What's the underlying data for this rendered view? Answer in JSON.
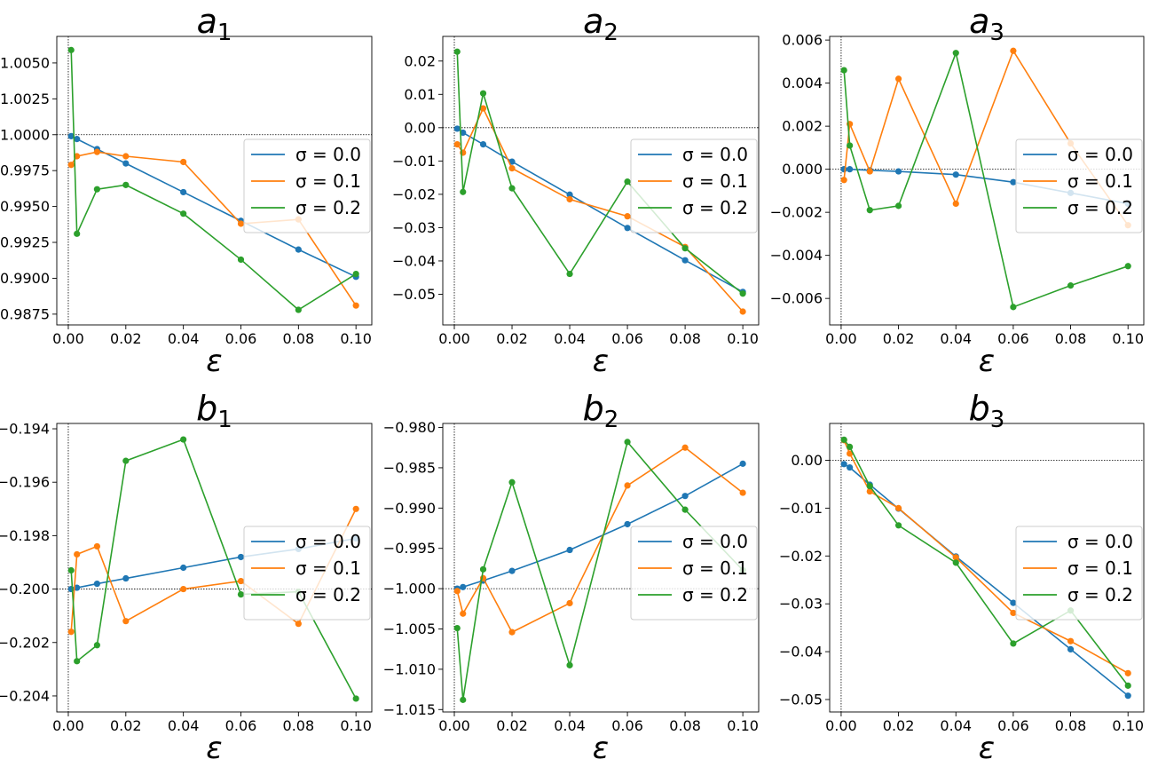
{
  "figure": {
    "background": "#ffffff"
  },
  "colors": {
    "sigma_0.0": "#1f77b4",
    "sigma_0.1": "#ff7f0e",
    "sigma_0.2": "#2ca02c"
  },
  "chart_data": [
    {
      "type": "line",
      "title": "a",
      "title_subscript": "1",
      "xlabel": "ε",
      "x": [
        0.001,
        0.003,
        0.01,
        0.02,
        0.04,
        0.06,
        0.08,
        0.1
      ],
      "xlim": [
        -0.004,
        0.1055
      ],
      "ylim": [
        0.98675,
        1.00685
      ],
      "xticks": [
        0.0,
        0.02,
        0.04,
        0.06,
        0.08,
        0.1
      ],
      "xtick_labels": [
        "0.00",
        "0.02",
        "0.04",
        "0.06",
        "0.08",
        "0.10"
      ],
      "yticks": [
        0.9875,
        0.99,
        0.9925,
        0.995,
        0.9975,
        1.0,
        1.0025,
        1.005
      ],
      "ytick_labels": [
        "0.9875",
        "0.9900",
        "0.9925",
        "0.9950",
        "0.9975",
        "1.0000",
        "1.0025",
        "1.0050"
      ],
      "reference_lines": {
        "y": 1.0,
        "x": 0.0
      },
      "legend": {
        "location": "center-right",
        "entries": [
          "σ = 0.0",
          "σ = 0.1",
          "σ = 0.2"
        ]
      },
      "series": [
        {
          "name": "σ = 0.0",
          "values": [
            0.9999,
            0.9997,
            0.999,
            0.998,
            0.996,
            0.994,
            0.992,
            0.9901
          ]
        },
        {
          "name": "σ = 0.1",
          "values": [
            0.9979,
            0.9985,
            0.9988,
            0.9985,
            0.9981,
            0.9938,
            0.9941,
            0.9881
          ]
        },
        {
          "name": "σ = 0.2",
          "values": [
            1.0059,
            0.9931,
            0.9962,
            0.9965,
            0.9945,
            0.9913,
            0.9878,
            0.9903
          ]
        }
      ]
    },
    {
      "type": "line",
      "title": "a",
      "title_subscript": "2",
      "xlabel": "ε",
      "x": [
        0.001,
        0.003,
        0.01,
        0.02,
        0.04,
        0.06,
        0.08,
        0.1
      ],
      "xlim": [
        -0.004,
        0.1055
      ],
      "ylim": [
        -0.0592,
        0.0274
      ],
      "xticks": [
        0.0,
        0.02,
        0.04,
        0.06,
        0.08,
        0.1
      ],
      "xtick_labels": [
        "0.00",
        "0.02",
        "0.04",
        "0.06",
        "0.08",
        "0.10"
      ],
      "yticks": [
        -0.05,
        -0.04,
        -0.03,
        -0.02,
        -0.01,
        0.0,
        0.01,
        0.02
      ],
      "ytick_labels": [
        "−0.05",
        "−0.04",
        "−0.03",
        "−0.02",
        "−0.01",
        "0.00",
        "0.01",
        "0.02"
      ],
      "reference_lines": {
        "y": 0.0,
        "x": 0.0
      },
      "legend": {
        "location": "center-right",
        "entries": [
          "σ = 0.0",
          "σ = 0.1",
          "σ = 0.2"
        ]
      },
      "series": [
        {
          "name": "σ = 0.0",
          "values": [
            -0.0003,
            -0.0015,
            -0.005,
            -0.0102,
            -0.0201,
            -0.0301,
            -0.0398,
            -0.0493
          ]
        },
        {
          "name": "σ = 0.1",
          "values": [
            -0.005,
            -0.0075,
            0.0058,
            -0.0122,
            -0.0215,
            -0.0266,
            -0.0358,
            -0.0552
          ]
        },
        {
          "name": "σ = 0.2",
          "values": [
            0.0228,
            -0.0193,
            0.0103,
            -0.0182,
            -0.0439,
            -0.0162,
            -0.0362,
            -0.0498
          ]
        }
      ]
    },
    {
      "type": "line",
      "title": "a",
      "title_subscript": "3",
      "xlabel": "ε",
      "x": [
        0.001,
        0.003,
        0.01,
        0.02,
        0.04,
        0.06,
        0.08,
        0.1
      ],
      "xlim": [
        -0.004,
        0.1055
      ],
      "ylim": [
        -0.00723,
        0.00617
      ],
      "xticks": [
        0.0,
        0.02,
        0.04,
        0.06,
        0.08,
        0.1
      ],
      "xtick_labels": [
        "0.00",
        "0.02",
        "0.04",
        "0.06",
        "0.08",
        "0.10"
      ],
      "yticks": [
        -0.006,
        -0.004,
        -0.002,
        0.0,
        0.002,
        0.004,
        0.006
      ],
      "ytick_labels": [
        "−0.006",
        "−0.004",
        "−0.002",
        "0.000",
        "0.002",
        "0.004",
        "0.006"
      ],
      "reference_lines": {
        "y": 0.0,
        "x": 0.0
      },
      "legend": {
        "location": "center-right",
        "entries": [
          "σ = 0.0",
          "σ = 0.1",
          "σ = 0.2"
        ]
      },
      "series": [
        {
          "name": "σ = 0.0",
          "values": [
            0.0,
            0.0,
            -5e-05,
            -0.0001,
            -0.00025,
            -0.0006,
            -0.0011,
            -0.0016
          ]
        },
        {
          "name": "σ = 0.1",
          "values": [
            -0.0005,
            0.0021,
            -0.0001,
            0.0042,
            -0.0016,
            0.0055,
            0.0012,
            -0.0026
          ]
        },
        {
          "name": "σ = 0.2",
          "values": [
            0.0046,
            0.0011,
            -0.0019,
            -0.0017,
            0.0054,
            -0.0064,
            -0.0054,
            -0.0045
          ]
        }
      ]
    },
    {
      "type": "line",
      "title": "b",
      "title_subscript": "1",
      "xlabel": "ε",
      "x": [
        0.001,
        0.003,
        0.01,
        0.02,
        0.04,
        0.06,
        0.08,
        0.1
      ],
      "xlim": [
        -0.004,
        0.1055
      ],
      "ylim": [
        -0.2046,
        -0.1938
      ],
      "xticks": [
        0.0,
        0.02,
        0.04,
        0.06,
        0.08,
        0.1
      ],
      "xtick_labels": [
        "0.00",
        "0.02",
        "0.04",
        "0.06",
        "0.08",
        "0.10"
      ],
      "yticks": [
        -0.204,
        -0.202,
        -0.2,
        -0.198,
        -0.196,
        -0.194
      ],
      "ytick_labels": [
        "−0.204",
        "−0.202",
        "−0.200",
        "−0.198",
        "−0.196",
        "−0.194"
      ],
      "reference_lines": {
        "y": -0.2,
        "x": 0.0
      },
      "legend": {
        "location": "center-right",
        "entries": [
          "σ = 0.0",
          "σ = 0.1",
          "σ = 0.2"
        ]
      },
      "series": [
        {
          "name": "σ = 0.0",
          "values": [
            -0.2,
            -0.19995,
            -0.1998,
            -0.1996,
            -0.1992,
            -0.1988,
            -0.1985,
            -0.1981
          ]
        },
        {
          "name": "σ = 0.1",
          "values": [
            -0.2016,
            -0.1987,
            -0.1984,
            -0.2012,
            -0.2,
            -0.1997,
            -0.2013,
            -0.197
          ]
        },
        {
          "name": "σ = 0.2",
          "values": [
            -0.1993,
            -0.2027,
            -0.2021,
            -0.1952,
            -0.1944,
            -0.2002,
            -0.2001,
            -0.2041
          ]
        }
      ]
    },
    {
      "type": "line",
      "title": "b",
      "title_subscript": "2",
      "xlabel": "ε",
      "x": [
        0.001,
        0.003,
        0.01,
        0.02,
        0.04,
        0.06,
        0.08,
        0.1
      ],
      "xlim": [
        -0.004,
        0.1055
      ],
      "ylim": [
        -1.0153,
        -0.9795
      ],
      "xticks": [
        0.0,
        0.02,
        0.04,
        0.06,
        0.08,
        0.1
      ],
      "xtick_labels": [
        "0.00",
        "0.02",
        "0.04",
        "0.06",
        "0.08",
        "0.10"
      ],
      "yticks": [
        -1.015,
        -1.01,
        -1.005,
        -1.0,
        -0.995,
        -0.99,
        -0.985,
        -0.98
      ],
      "ytick_labels": [
        "−1.015",
        "−1.010",
        "−1.005",
        "−1.000",
        "−0.995",
        "−0.990",
        "−0.985",
        "−0.980"
      ],
      "reference_lines": {
        "y": -1.0,
        "x": 0.0
      },
      "legend": {
        "location": "center-right",
        "entries": [
          "σ = 0.0",
          "σ = 0.1",
          "σ = 0.2"
        ]
      },
      "series": [
        {
          "name": "σ = 0.0",
          "values": [
            -1.0,
            -0.9998,
            -0.999,
            -0.9978,
            -0.9952,
            -0.992,
            -0.9885,
            -0.9845
          ]
        },
        {
          "name": "σ = 0.1",
          "values": [
            -1.0003,
            -1.0031,
            -0.9987,
            -1.0054,
            -1.0018,
            -0.9872,
            -0.9825,
            -0.9881
          ]
        },
        {
          "name": "σ = 0.2",
          "values": [
            -1.0049,
            -1.0138,
            -0.9976,
            -0.9868,
            -1.0095,
            -0.9818,
            -0.9902,
            -0.9977
          ]
        }
      ]
    },
    {
      "type": "line",
      "title": "b",
      "title_subscript": "3",
      "xlabel": "ε",
      "x": [
        0.001,
        0.003,
        0.01,
        0.02,
        0.04,
        0.06,
        0.08,
        0.1
      ],
      "xlim": [
        -0.004,
        0.1055
      ],
      "ylim": [
        -0.0526,
        0.0077
      ],
      "xticks": [
        0.0,
        0.02,
        0.04,
        0.06,
        0.08,
        0.1
      ],
      "xtick_labels": [
        "0.00",
        "0.02",
        "0.04",
        "0.06",
        "0.08",
        "0.10"
      ],
      "yticks": [
        -0.05,
        -0.04,
        -0.03,
        -0.02,
        -0.01,
        0.0
      ],
      "ytick_labels": [
        "−0.05",
        "−0.04",
        "−0.03",
        "−0.02",
        "−0.01",
        "0.00"
      ],
      "reference_lines": {
        "y": 0.0,
        "x": 0.0
      },
      "legend": {
        "location": "center-right",
        "entries": [
          "σ = 0.0",
          "σ = 0.1",
          "σ = 0.2"
        ]
      },
      "series": [
        {
          "name": "σ = 0.0",
          "values": [
            -0.0008,
            -0.0015,
            -0.0051,
            -0.0101,
            -0.0201,
            -0.0298,
            -0.0395,
            -0.0492
          ]
        },
        {
          "name": "σ = 0.1",
          "values": [
            0.0042,
            0.0014,
            -0.0065,
            -0.01,
            -0.0203,
            -0.0319,
            -0.0378,
            -0.0445
          ]
        },
        {
          "name": "σ = 0.2",
          "values": [
            0.0043,
            0.0028,
            -0.0054,
            -0.0136,
            -0.0214,
            -0.0383,
            -0.0314,
            -0.0471
          ]
        }
      ]
    }
  ]
}
